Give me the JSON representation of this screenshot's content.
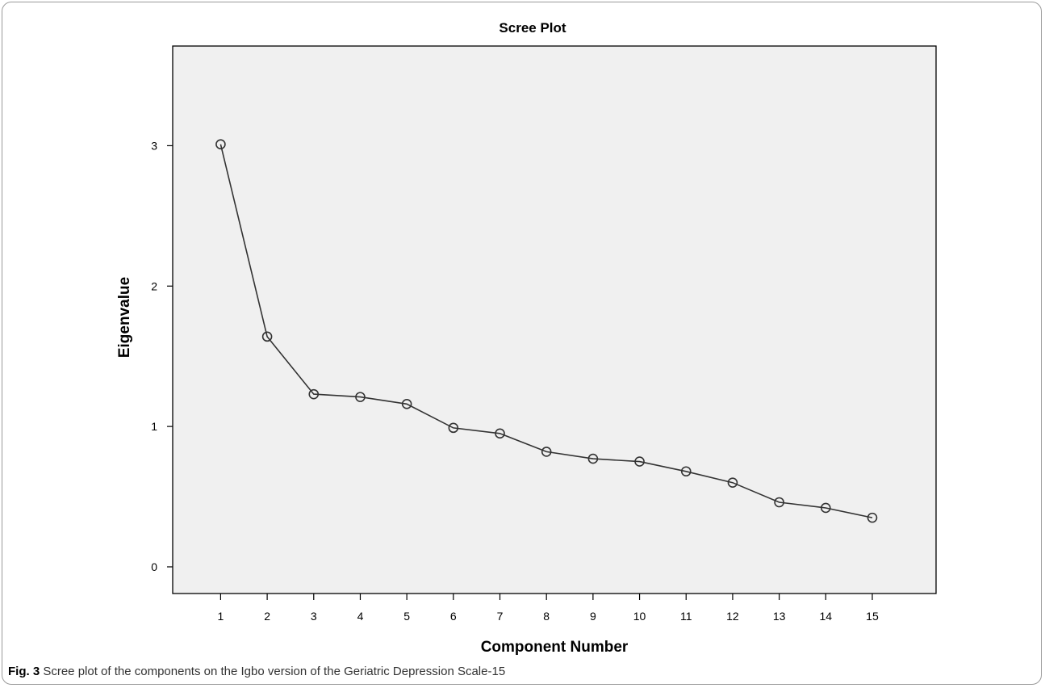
{
  "chart_data": {
    "type": "line",
    "title": "Scree Plot",
    "xlabel": "Component Number",
    "ylabel": "Eigenvalue",
    "x": [
      1,
      2,
      3,
      4,
      5,
      6,
      7,
      8,
      9,
      10,
      11,
      12,
      13,
      14,
      15
    ],
    "values": [
      3.01,
      1.64,
      1.23,
      1.21,
      1.16,
      0.99,
      0.95,
      0.82,
      0.77,
      0.75,
      0.68,
      0.6,
      0.46,
      0.42,
      0.35
    ],
    "x_ticks": [
      "1",
      "2",
      "3",
      "4",
      "5",
      "6",
      "7",
      "8",
      "9",
      "10",
      "11",
      "12",
      "13",
      "14",
      "15"
    ],
    "y_ticks": [
      "0",
      "1",
      "2",
      "3"
    ],
    "xlim": [
      -0.03,
      16.37
    ],
    "ylim": [
      -0.19,
      3.71
    ],
    "grid": false,
    "marker": "open-circle",
    "colors": {
      "plot_bg": "#f0f0f0",
      "line": "#333333",
      "marker": "#333333"
    }
  },
  "caption": {
    "label": "Fig. 3",
    "text": "Scree plot of the components on the Igbo version of the Geriatric Depression Scale-15"
  }
}
